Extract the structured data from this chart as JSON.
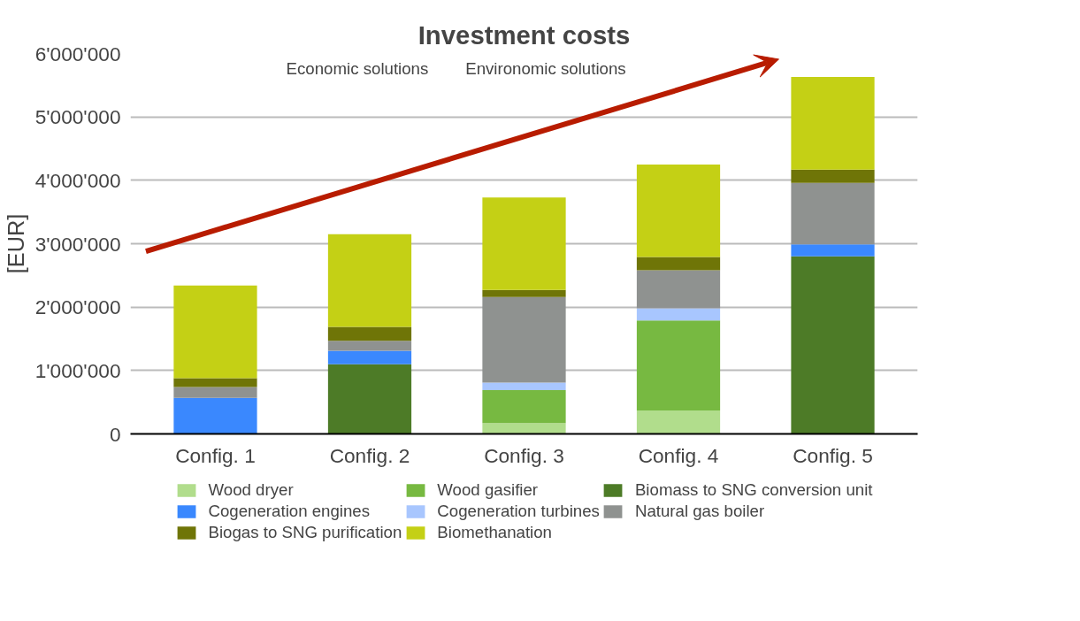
{
  "chart_data": {
    "type": "bar",
    "stacked": true,
    "title": "Investment costs",
    "ylabel": "[EUR]",
    "categories": [
      "Config. 1",
      "Config. 2",
      "Config. 3",
      "Config. 4",
      "Config. 5"
    ],
    "series": [
      {
        "name": "Wood dryer",
        "color": "#b1dd8c",
        "values": [
          0,
          0,
          170000,
          370000,
          0
        ]
      },
      {
        "name": "Wood gasifier",
        "color": "#77b941",
        "values": [
          0,
          0,
          520000,
          1420000,
          0
        ]
      },
      {
        "name": "Biomass to SNG conversion unit",
        "color": "#4d7b27",
        "values": [
          0,
          1100000,
          0,
          0,
          2800000
        ]
      },
      {
        "name": "Cogeneration engines",
        "color": "#3a88fe",
        "values": [
          570000,
          210000,
          0,
          0,
          190000
        ]
      },
      {
        "name": "Cogeneration turbines",
        "color": "#a8c6fe",
        "values": [
          0,
          0,
          120000,
          190000,
          0
        ]
      },
      {
        "name": "Natural gas boiler",
        "color": "#8f9290",
        "values": [
          170000,
          160000,
          1350000,
          600000,
          970000
        ]
      },
      {
        "name": "Biogas to SNG purification",
        "color": "#6f7507",
        "values": [
          140000,
          220000,
          110000,
          210000,
          210000
        ]
      },
      {
        "name": "Biomethanation",
        "color": "#c4d015",
        "values": [
          1460000,
          1460000,
          1460000,
          1460000,
          1460000
        ]
      }
    ],
    "ylim": [
      0,
      6000000
    ],
    "yticks": [
      {
        "value": 0,
        "label": "0"
      },
      {
        "value": 1000000,
        "label": "1'000'000"
      },
      {
        "value": 2000000,
        "label": "2'000'000"
      },
      {
        "value": 3000000,
        "label": "3'000'000"
      },
      {
        "value": 4000000,
        "label": "4'000'000"
      },
      {
        "value": 5000000,
        "label": "5'000'000"
      },
      {
        "value": 6000000,
        "label": "6'000'000"
      }
    ],
    "grid": "y",
    "legend": "bottom",
    "annotations": [
      "Economic solutions",
      "Environomic solutions"
    ]
  }
}
